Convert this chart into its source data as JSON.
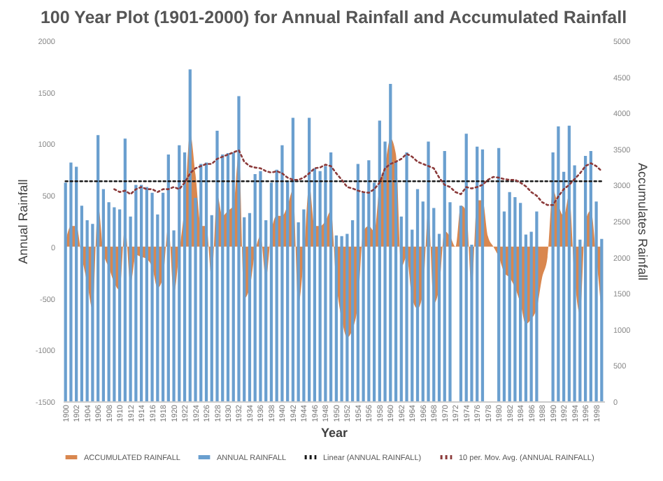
{
  "chart_data": {
    "type": "bar",
    "title": "100 Year Plot (1901-2000)  for Annual Rainfall and Accumulated Rainfall",
    "xlabel": "Year",
    "ylabel": "Annual Rainfall",
    "y2label": "Accumulates Rainfall",
    "categories": [
      "1900",
      null,
      "1902",
      null,
      "1904",
      null,
      "1906",
      null,
      "1908",
      null,
      "1910",
      null,
      "1912",
      null,
      "1914",
      null,
      "1916",
      null,
      "1918",
      null,
      "1920",
      null,
      "1922",
      null,
      "1924",
      null,
      "1926",
      null,
      "1928",
      null,
      "1930",
      null,
      "1932",
      null,
      "1934",
      null,
      "1936",
      null,
      "1938",
      null,
      "1940",
      null,
      "1942",
      null,
      "1944",
      null,
      "1946",
      null,
      "1948",
      null,
      "1950",
      null,
      "1952",
      null,
      "1954",
      null,
      "1956",
      null,
      "1958",
      null,
      "1960",
      null,
      "1962",
      null,
      "1964",
      null,
      "1966",
      null,
      "1968",
      null,
      "1970",
      null,
      "1972",
      null,
      "1974",
      null,
      "1976",
      null,
      "1978",
      null,
      "1980",
      null,
      "1982",
      null,
      "1984",
      null,
      "1986",
      null,
      "1988",
      null,
      "1990",
      null,
      "1992",
      null,
      "1994",
      null,
      "1996",
      null,
      "1998",
      null
    ],
    "ylim": [
      -1500,
      2000
    ],
    "yticks": [
      -1500,
      -1000,
      -500,
      0,
      500,
      1000,
      1500,
      2000
    ],
    "y2lim": [
      0,
      5000
    ],
    "y2ticks": [
      0,
      500,
      1000,
      1500,
      2000,
      2500,
      3000,
      3500,
      4000,
      4500,
      5000
    ],
    "legend": "bottom",
    "series": [
      {
        "name": "ACCUMULATED RAINFALL",
        "type": "area",
        "color": "#d9874f",
        "values": [
          50,
          200,
          200,
          -100,
          -350,
          -600,
          400,
          -50,
          -200,
          -350,
          -420,
          200,
          -350,
          -80,
          -100,
          -120,
          -200,
          -400,
          -300,
          200,
          -450,
          -50,
          400,
          1100,
          700,
          200,
          200,
          -300,
          500,
          300,
          350,
          400,
          900,
          -500,
          -400,
          -50,
          100,
          -300,
          150,
          300,
          300,
          400,
          550,
          -550,
          -100,
          600,
          200,
          200,
          250,
          350,
          -350,
          -700,
          -880,
          -800,
          -550,
          150,
          200,
          150,
          600,
          800,
          1050,
          900,
          -200,
          -100,
          -500,
          -600,
          -450,
          350,
          -550,
          -400,
          150,
          100,
          0,
          400,
          350,
          -400,
          450,
          450,
          100,
          0,
          -100,
          -250,
          -300,
          -400,
          -550,
          -750,
          -700,
          -600,
          -300,
          -100,
          550,
          400,
          300,
          500,
          -300,
          -650,
          250,
          350,
          -100,
          -650
        ]
      },
      {
        "name": "ANNUAL RAINFALL",
        "type": "bar",
        "axis": "y2",
        "color": "#6a9fcf",
        "values": [
          3030,
          3310,
          3250,
          2710,
          2510,
          2460,
          3690,
          2940,
          2760,
          2690,
          2660,
          3640,
          2560,
          3000,
          3000,
          2970,
          2890,
          2590,
          2890,
          3420,
          2370,
          3550,
          3450,
          4600,
          2820,
          3290,
          3310,
          2580,
          3750,
          3420,
          3440,
          3450,
          4230,
          2550,
          2610,
          3150,
          3190,
          2510,
          3030,
          3210,
          3550,
          3060,
          3930,
          2480,
          2660,
          3930,
          3230,
          3190,
          3260,
          3450,
          2300,
          2290,
          2320,
          2510,
          3290,
          2900,
          3340,
          3030,
          3890,
          3600,
          4400,
          3320,
          2560,
          3450,
          2380,
          2940,
          2770,
          3600,
          2680,
          2320,
          3470,
          2760,
          null,
          2710,
          3710,
          2170,
          3530,
          3490,
          null,
          null,
          3510,
          2630,
          2900,
          2830,
          2750,
          2310,
          2350,
          2630,
          null,
          null,
          3450,
          3810,
          3180,
          3820,
          3270,
          2240,
          3400,
          3470,
          2770,
          2250
        ]
      },
      {
        "name": "Linear (ANNUAL RAINFALL)",
        "type": "line",
        "axis": "y2",
        "line_style": "dotted",
        "color": "#1a1a1a",
        "values": [
          3050,
          3050,
          3050,
          3050,
          3050,
          3050,
          3050,
          3050,
          3050,
          3050,
          3050,
          3050,
          3050,
          3050,
          3050,
          3050,
          3050,
          3050,
          3050,
          3050,
          3050,
          3050,
          3050,
          3050,
          3050,
          3050,
          3050,
          3050,
          3050,
          3050,
          3050,
          3050,
          3050,
          3050,
          3050,
          3050,
          3050,
          3050,
          3050,
          3050,
          3050,
          3050,
          3050,
          3050,
          3050,
          3050,
          3050,
          3050,
          3050,
          3050,
          3050,
          3050,
          3050,
          3050,
          3050,
          3050,
          3050,
          3050,
          3050,
          3050,
          3050,
          3050,
          3050,
          3050,
          3050,
          3050,
          3050,
          3050,
          3050,
          3050,
          3050,
          3050,
          3050,
          3050,
          3050,
          3050,
          3050,
          3050,
          3050,
          3050,
          3050,
          3050,
          3050,
          3050,
          3050,
          3050,
          3050,
          3050,
          3050,
          3050,
          3050,
          3050,
          3050,
          3050,
          3050,
          3050,
          3050,
          3050,
          3050,
          3050
        ]
      },
      {
        "name": "10 per. Mov. Avg. (ANNUAL RAINFALL)",
        "type": "line",
        "axis": "y2",
        "line_style": "dotted",
        "color": "#8b3a3a",
        "values": [
          null,
          null,
          null,
          null,
          null,
          null,
          null,
          null,
          null,
          2940,
          2900,
          2920,
          2870,
          2940,
          2970,
          2940,
          2940,
          2900,
          2940,
          2940,
          2970,
          2940,
          3030,
          3160,
          3230,
          3260,
          3290,
          3290,
          3360,
          3390,
          3420,
          3450,
          3480,
          3320,
          3260,
          3240,
          3230,
          3190,
          3170,
          3190,
          3160,
          3100,
          3070,
          3070,
          3100,
          3160,
          3230,
          3240,
          3280,
          3260,
          3160,
          3070,
          2970,
          2950,
          2920,
          2900,
          2890,
          2940,
          3030,
          3230,
          3290,
          3320,
          3360,
          3430,
          3390,
          3320,
          3290,
          3260,
          3230,
          3100,
          3000,
          2970,
          2900,
          2870,
          2970,
          2950,
          2970,
          3000,
          3070,
          3110,
          3100,
          3080,
          3070,
          3070,
          3030,
          2980,
          2900,
          2850,
          2760,
          2720,
          2720,
          2840,
          2940,
          3000,
          3080,
          3160,
          3260,
          3300,
          3260,
          3190
        ]
      }
    ]
  }
}
